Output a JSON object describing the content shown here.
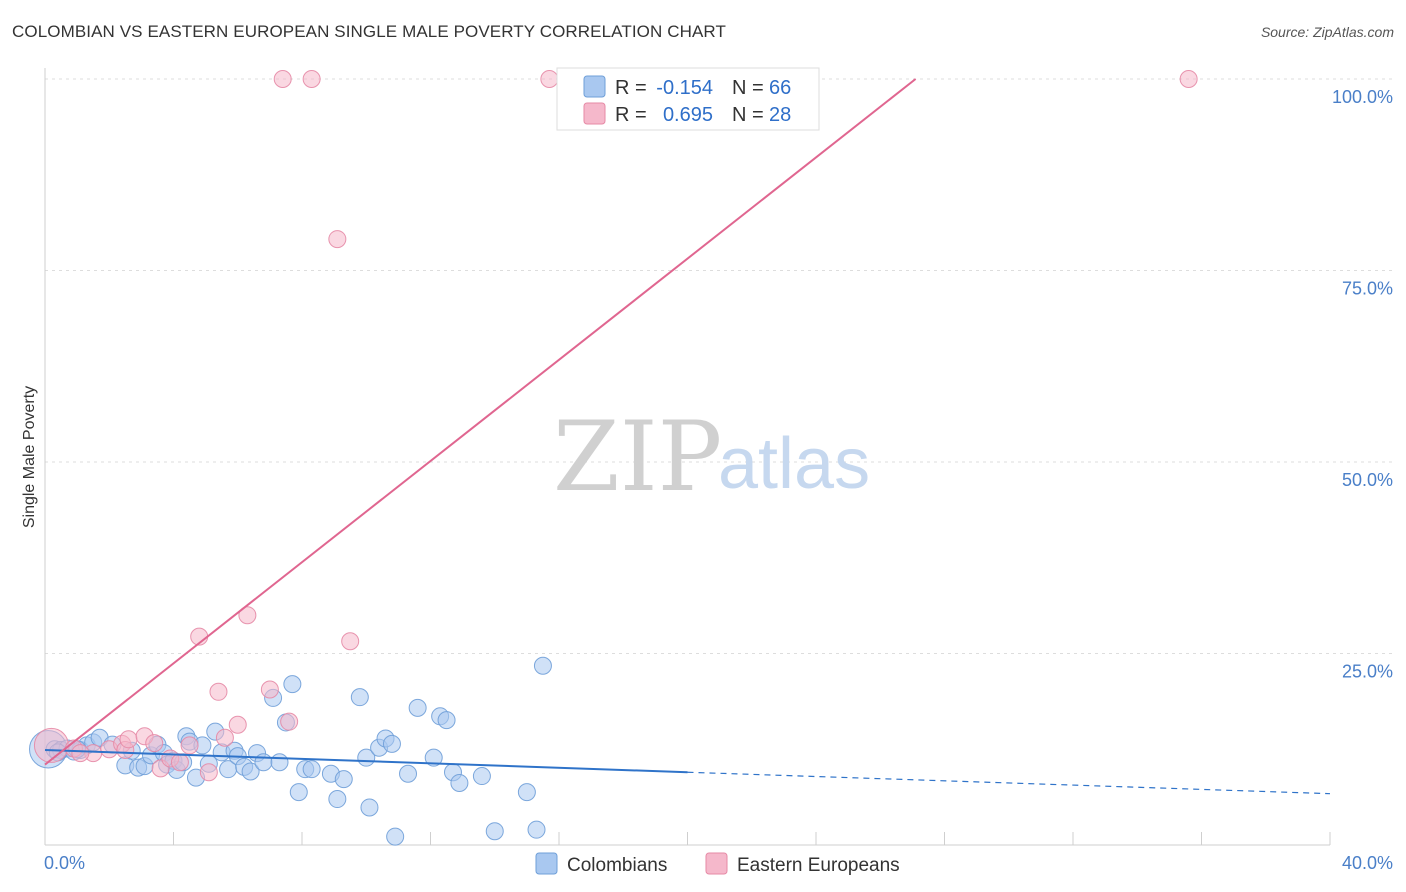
{
  "header": {
    "title": "COLOMBIAN VS EASTERN EUROPEAN SINGLE MALE POVERTY CORRELATION CHART",
    "source": "Source: ZipAtlas.com"
  },
  "watermark": {
    "zip": "ZIP",
    "atlas": "atlas"
  },
  "legend_box": {
    "rows": [
      {
        "r_label": "R =",
        "r_value": "-0.154",
        "n_label": "N =",
        "n_value": "66",
        "color": "#a9c8f0",
        "stroke": "#6f9fd8"
      },
      {
        "r_label": "R =",
        "r_value": "0.695",
        "n_label": "N =",
        "n_value": "28",
        "color": "#f5b8cb",
        "stroke": "#e68aa6"
      }
    ]
  },
  "chart_data": {
    "type": "scatter",
    "title": "COLOMBIAN VS EASTERN EUROPEAN SINGLE MALE POVERTY CORRELATION CHART",
    "xlabel": "",
    "ylabel": "Single Male Poverty",
    "xlim": [
      0,
      40
    ],
    "ylim": [
      0,
      100
    ],
    "x_tick_labels": {
      "min": "0.0%",
      "max": "40.0%"
    },
    "y_ticks": [
      {
        "value": 100,
        "label": "100.0%"
      },
      {
        "value": 75,
        "label": "75.0%"
      },
      {
        "value": 50,
        "label": "50.0%"
      },
      {
        "value": 25,
        "label": "25.0%"
      }
    ],
    "grid": true,
    "series": [
      {
        "name": "Colombians",
        "color": "#a9c8f0",
        "stroke": "#6f9fd8",
        "line_color": "#2f73c9",
        "trend": {
          "x0": 0,
          "y0": 12.4,
          "x1": 20,
          "y1": 9.5,
          "dash_x1": 40,
          "dash_y1": 6.7
        },
        "points": [
          [
            0.1,
            12.5,
            2.2
          ],
          [
            0.3,
            12.5,
            1
          ],
          [
            0.5,
            12.4,
            1
          ],
          [
            0.7,
            12.6,
            1
          ],
          [
            0.9,
            12.2,
            1
          ],
          [
            1.1,
            12.4,
            1
          ],
          [
            1.3,
            13.0,
            1
          ],
          [
            1.5,
            13.4,
            1
          ],
          [
            1.7,
            14.0,
            1
          ],
          [
            2.1,
            13.1,
            1
          ],
          [
            2.5,
            10.4,
            1
          ],
          [
            2.7,
            12.3,
            1
          ],
          [
            2.9,
            10.1,
            1
          ],
          [
            3.1,
            10.3,
            1
          ],
          [
            3.3,
            11.7,
            1
          ],
          [
            3.5,
            13.1,
            1
          ],
          [
            3.7,
            12.0,
            1
          ],
          [
            3.8,
            10.5,
            1
          ],
          [
            4.0,
            11.0,
            1
          ],
          [
            4.1,
            9.8,
            1
          ],
          [
            4.3,
            10.8,
            1
          ],
          [
            4.4,
            14.2,
            1
          ],
          [
            4.5,
            13.5,
            1
          ],
          [
            4.7,
            8.8,
            1
          ],
          [
            4.9,
            13.0,
            1
          ],
          [
            5.1,
            10.6,
            1
          ],
          [
            5.3,
            14.8,
            1
          ],
          [
            5.5,
            12.1,
            1
          ],
          [
            5.7,
            9.9,
            1
          ],
          [
            5.9,
            12.3,
            1
          ],
          [
            6.0,
            11.6,
            1
          ],
          [
            6.2,
            10.2,
            1
          ],
          [
            6.4,
            9.6,
            1
          ],
          [
            6.6,
            12.0,
            1
          ],
          [
            6.8,
            10.8,
            1
          ],
          [
            7.1,
            19.2,
            1
          ],
          [
            7.3,
            10.8,
            1
          ],
          [
            7.5,
            16.0,
            1
          ],
          [
            7.7,
            21.0,
            1
          ],
          [
            7.9,
            6.9,
            1
          ],
          [
            8.1,
            9.9,
            1
          ],
          [
            8.3,
            9.9,
            1
          ],
          [
            8.9,
            9.3,
            1
          ],
          [
            9.1,
            6.0,
            1
          ],
          [
            9.3,
            8.6,
            1
          ],
          [
            9.8,
            19.3,
            1
          ],
          [
            10.0,
            11.4,
            1
          ],
          [
            10.1,
            4.9,
            1
          ],
          [
            10.4,
            12.7,
            1
          ],
          [
            10.6,
            13.9,
            1
          ],
          [
            10.8,
            13.2,
            1
          ],
          [
            10.9,
            1.1,
            1
          ],
          [
            11.3,
            9.3,
            1
          ],
          [
            11.6,
            17.9,
            1
          ],
          [
            12.1,
            11.4,
            1
          ],
          [
            12.3,
            16.8,
            1
          ],
          [
            12.5,
            16.3,
            1
          ],
          [
            12.7,
            9.5,
            1
          ],
          [
            12.9,
            8.1,
            1
          ],
          [
            13.6,
            9.0,
            1
          ],
          [
            14.0,
            1.8,
            1
          ],
          [
            15.0,
            6.9,
            1
          ],
          [
            15.5,
            23.4,
            1
          ],
          [
            15.3,
            2.0,
            1
          ],
          [
            0.4,
            12.1,
            1
          ],
          [
            1.0,
            12.5,
            1
          ]
        ]
      },
      {
        "name": "Eastern Europeans",
        "color": "#f5b8cb",
        "stroke": "#e68aa6",
        "line_color": "#e06690",
        "trend": {
          "x0": 0,
          "y0": 10.5,
          "x1": 27.1,
          "y1": 100
        },
        "points": [
          [
            0.2,
            13.0,
            2.0
          ],
          [
            0.9,
            12.6,
            1
          ],
          [
            1.5,
            12.0,
            1
          ],
          [
            2.0,
            12.5,
            1
          ],
          [
            2.4,
            13.2,
            1
          ],
          [
            2.5,
            12.4,
            1
          ],
          [
            2.6,
            13.8,
            1
          ],
          [
            3.1,
            14.2,
            1
          ],
          [
            3.4,
            13.3,
            1
          ],
          [
            3.6,
            10.0,
            1
          ],
          [
            3.9,
            11.3,
            1
          ],
          [
            4.2,
            10.8,
            1
          ],
          [
            4.5,
            13.0,
            1
          ],
          [
            4.8,
            27.2,
            1
          ],
          [
            5.1,
            9.5,
            1
          ],
          [
            5.4,
            20.0,
            1
          ],
          [
            5.6,
            14.0,
            1
          ],
          [
            6.0,
            15.7,
            1
          ],
          [
            6.3,
            30.0,
            1
          ],
          [
            7.0,
            20.3,
            1
          ],
          [
            7.6,
            16.1,
            1
          ],
          [
            7.4,
            100,
            1
          ],
          [
            8.3,
            100,
            1
          ],
          [
            9.1,
            79.1,
            1
          ],
          [
            9.5,
            26.6,
            1
          ],
          [
            15.7,
            100,
            1
          ],
          [
            35.6,
            100,
            1
          ],
          [
            1.1,
            12.0,
            1
          ]
        ]
      }
    ]
  },
  "bottom_legend": {
    "items": [
      {
        "label": "Colombians",
        "color": "#a9c8f0",
        "stroke": "#6f9fd8"
      },
      {
        "label": "Eastern Europeans",
        "color": "#f5b8cb",
        "stroke": "#e68aa6"
      }
    ]
  }
}
